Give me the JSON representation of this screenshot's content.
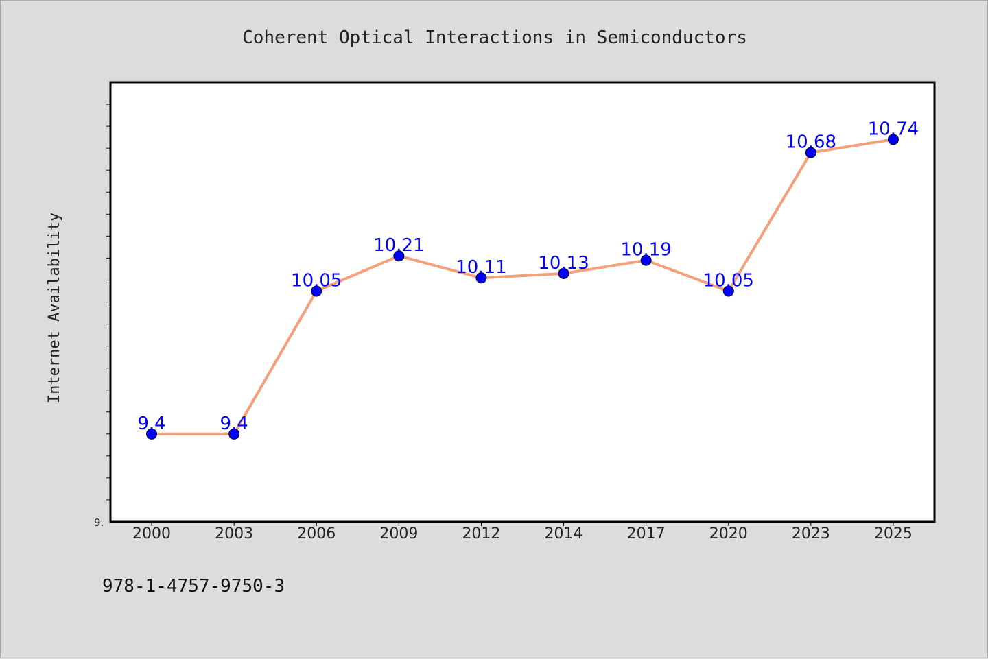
{
  "chart_data": {
    "type": "line",
    "title": "Coherent Optical Interactions in Semiconductors",
    "xlabel": "",
    "ylabel": "Internet Availability",
    "categories": [
      "2000",
      "2003",
      "2006",
      "2009",
      "2012",
      "2014",
      "2017",
      "2020",
      "2023",
      "2025"
    ],
    "series": [
      {
        "values": [
          9.4,
          9.4,
          10.05,
          10.21,
          10.11,
          10.13,
          10.19,
          10.05,
          10.68,
          10.74
        ],
        "labels": [
          "9.4",
          "9.4",
          "10.05",
          "10.21",
          "10.11",
          "10.13",
          "10.19",
          "10.05",
          "10.68",
          "10.74"
        ]
      }
    ],
    "ylim": [
      9.0,
      11.0
    ],
    "y_tick_label": "9.",
    "grid": false,
    "colors": {
      "line": "#f4a07a",
      "marker": "#0000ff",
      "label": "#0000ff",
      "background": "#dcdcdc",
      "plot_background": "#ffffff"
    }
  },
  "footer": {
    "isbn": "978-1-4757-9750-3"
  }
}
